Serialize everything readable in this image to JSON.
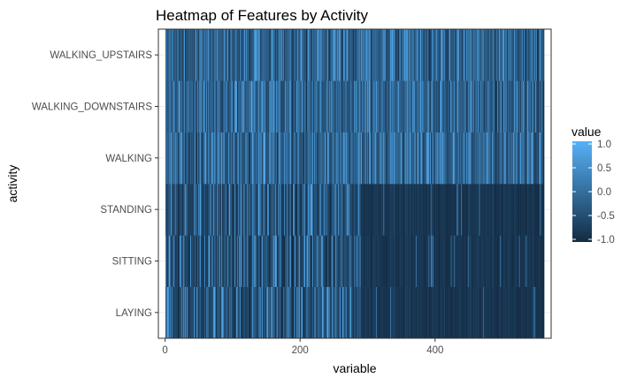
{
  "chart_data": {
    "type": "heatmap",
    "title": "Heatmap of Features by Activity",
    "xlabel": "variable",
    "ylabel": "activity",
    "x_range": [
      1,
      561
    ],
    "xlim": [
      -10,
      572
    ],
    "x_ticks": [
      0,
      200,
      400
    ],
    "categories": [
      "LAYING",
      "SITTING",
      "STANDING",
      "WALKING",
      "WALKING_DOWNSTAIRS",
      "WALKING_UPSTAIRS"
    ],
    "value_range": [
      -1,
      1
    ],
    "legend": {
      "title": "value",
      "position": "right",
      "ticks": [
        1.0,
        0.5,
        0.0,
        -0.5,
        -1.0
      ],
      "tick_labels": [
        "1.0",
        "0.5",
        "0.0",
        "-0.5",
        "-1.0"
      ]
    },
    "colors": {
      "low": "#132b43",
      "high": "#56b1f7",
      "panel_border": "#333333",
      "grid": "#ebebeb",
      "background": "#ffffff"
    },
    "grid": true,
    "note_values": "Approximate per-column values: static activities (LAYING, SITTING, STANDING) mostly near -1 beyond variable ~300; dynamic activities mixed around -0.5 to 0.5"
  }
}
